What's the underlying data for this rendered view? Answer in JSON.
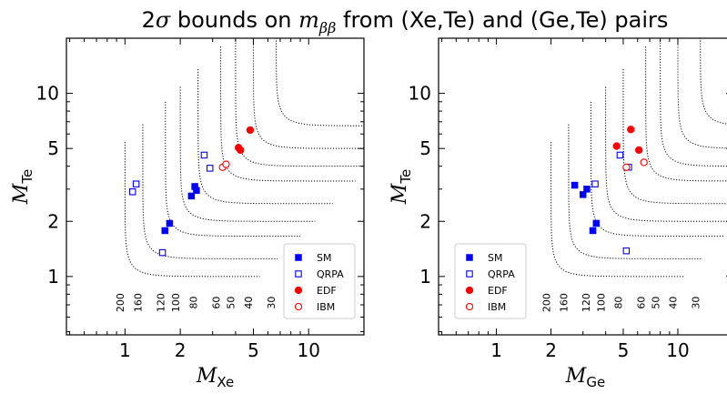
{
  "title": {
    "prefix": "2",
    "sigma": "σ",
    "middle": " bounds on ",
    "m": "m",
    "sub": "ββ",
    "suffix": " from (Xe,Te) and (Ge,Te) pairs"
  },
  "colors": {
    "sm": "#0000ff",
    "qrpa": "#0000ff",
    "edf": "#ff0000",
    "ibm": "#ff0000",
    "contour": "#000000"
  },
  "chart_data": [
    {
      "type": "scatter",
      "x_scale": "log",
      "y_scale": "log",
      "xlim": [
        0.48,
        20
      ],
      "ylim": [
        0.48,
        20
      ],
      "xlabel": {
        "main": "M",
        "sub": "Xe"
      },
      "ylabel": {
        "main": "M",
        "sub": "Te"
      },
      "xticks": [
        1,
        2,
        5,
        10
      ],
      "yticks": [
        1,
        2,
        5,
        10
      ],
      "tick_labels": [
        "1",
        "2",
        "5",
        "10"
      ],
      "contours": [
        {
          "label": "200",
          "x0": 1.0,
          "y0": 1.0
        },
        {
          "label": "160",
          "x0": 1.25,
          "y0": 1.25
        },
        {
          "label": "120",
          "x0": 1.66,
          "y0": 1.66
        },
        {
          "label": "100",
          "x0": 2.0,
          "y0": 2.0
        },
        {
          "label": "80",
          "x0": 2.5,
          "y0": 2.5
        },
        {
          "label": "60",
          "x0": 3.32,
          "y0": 3.32
        },
        {
          "label": "50",
          "x0": 4.0,
          "y0": 4.0
        },
        {
          "label": "40",
          "x0": 5.0,
          "y0": 5.0
        },
        {
          "label": "30",
          "x0": 6.65,
          "y0": 6.65
        }
      ],
      "series": [
        {
          "name": "SM",
          "marker": "square-filled",
          "points": [
            [
              1.65,
              1.78
            ],
            [
              1.75,
              1.95
            ],
            [
              2.3,
              2.75
            ],
            [
              2.4,
              3.1
            ],
            [
              2.45,
              2.95
            ]
          ]
        },
        {
          "name": "QRPA",
          "marker": "square-open",
          "points": [
            [
              1.6,
              1.35
            ],
            [
              1.1,
              2.9
            ],
            [
              1.15,
              3.2
            ],
            [
              2.7,
              4.6
            ],
            [
              2.9,
              3.9
            ]
          ]
        },
        {
          "name": "EDF",
          "marker": "circle-filled",
          "points": [
            [
              4.15,
              5.05
            ],
            [
              4.25,
              4.9
            ],
            [
              4.8,
              6.3
            ]
          ]
        },
        {
          "name": "IBM",
          "marker": "circle-open",
          "points": [
            [
              3.4,
              3.95
            ],
            [
              3.55,
              4.1
            ]
          ]
        }
      ],
      "legend": "lower right"
    },
    {
      "type": "scatter",
      "x_scale": "log",
      "y_scale": "log",
      "xlim": [
        0.48,
        20
      ],
      "ylim": [
        0.48,
        20
      ],
      "xlabel": {
        "main": "M",
        "sub": "Ge"
      },
      "ylabel": {
        "main": "M",
        "sub": "Te"
      },
      "xticks": [
        1,
        2,
        5,
        10
      ],
      "yticks": [
        1,
        2,
        5,
        10
      ],
      "tick_labels": [
        "1",
        "2",
        "5",
        "10"
      ],
      "contours": [
        {
          "label": "200",
          "x0": 2.0,
          "y0": 1.0
        },
        {
          "label": "160",
          "x0": 2.5,
          "y0": 1.25
        },
        {
          "label": "120",
          "x0": 3.32,
          "y0": 1.66
        },
        {
          "label": "100",
          "x0": 4.0,
          "y0": 2.0
        },
        {
          "label": "80",
          "x0": 5.0,
          "y0": 2.5
        },
        {
          "label": "60",
          "x0": 6.65,
          "y0": 3.32
        },
        {
          "label": "50",
          "x0": 8.0,
          "y0": 4.0
        },
        {
          "label": "40",
          "x0": 10.0,
          "y0": 5.0
        },
        {
          "label": "30",
          "x0": 13.3,
          "y0": 6.65
        }
      ],
      "series": [
        {
          "name": "SM",
          "marker": "square-filled",
          "points": [
            [
              2.7,
              3.15
            ],
            [
              3.0,
              2.8
            ],
            [
              3.15,
              3.0
            ],
            [
              3.4,
              1.78
            ],
            [
              3.55,
              1.95
            ]
          ]
        },
        {
          "name": "QRPA",
          "marker": "square-open",
          "points": [
            [
              3.5,
              3.2
            ],
            [
              4.8,
              4.6
            ],
            [
              5.2,
              1.38
            ],
            [
              5.35,
              3.95
            ]
          ]
        },
        {
          "name": "EDF",
          "marker": "circle-filled",
          "points": [
            [
              4.6,
              5.15
            ],
            [
              5.5,
              6.35
            ],
            [
              6.1,
              4.9
            ]
          ]
        },
        {
          "name": "IBM",
          "marker": "circle-open",
          "points": [
            [
              5.2,
              3.95
            ],
            [
              6.5,
              4.2
            ]
          ]
        }
      ],
      "legend": "lower left"
    }
  ]
}
